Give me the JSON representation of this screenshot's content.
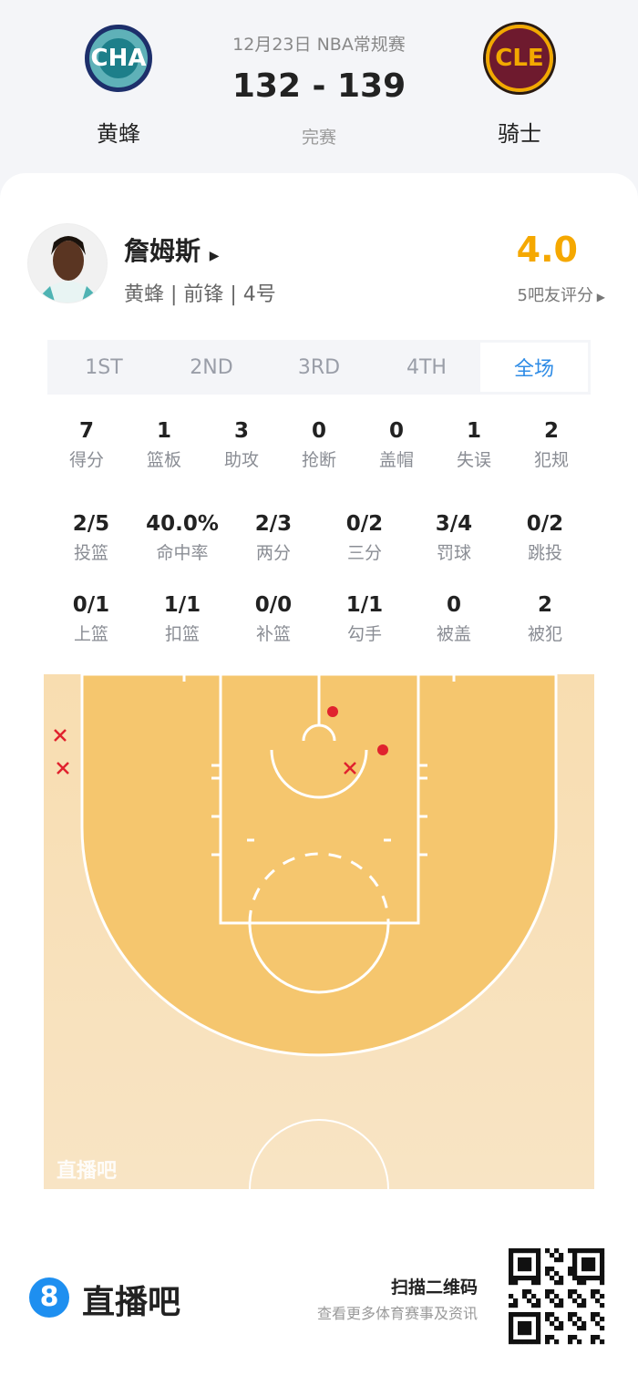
{
  "game": {
    "date_type": "12月23日 NBA常规赛",
    "score": "132 - 139",
    "status": "完赛"
  },
  "home": {
    "abbr": "CHA",
    "name": "黄蜂",
    "color": "#1d7f8a"
  },
  "away": {
    "abbr": "CLE",
    "name": "骑士",
    "color": "#6e1a2e"
  },
  "player": {
    "name": "詹姆斯",
    "info": "黄蜂 | 前锋 | 4号",
    "rating": "4.0",
    "rating_label": "5吧友评分",
    "rating_color": "#f5a800"
  },
  "tabs": [
    {
      "label": "1ST"
    },
    {
      "label": "2ND"
    },
    {
      "label": "3RD"
    },
    {
      "label": "4TH"
    },
    {
      "label": "全场",
      "active": true
    }
  ],
  "stats_row1": [
    {
      "v": "7",
      "l": "得分"
    },
    {
      "v": "1",
      "l": "篮板"
    },
    {
      "v": "3",
      "l": "助攻"
    },
    {
      "v": "0",
      "l": "抢断"
    },
    {
      "v": "0",
      "l": "盖帽"
    },
    {
      "v": "1",
      "l": "失误"
    },
    {
      "v": "2",
      "l": "犯规"
    }
  ],
  "stats_row2": [
    {
      "v": "2/5",
      "l": "投篮"
    },
    {
      "v": "40.0%",
      "l": "命中率"
    },
    {
      "v": "2/3",
      "l": "两分"
    },
    {
      "v": "0/2",
      "l": "三分"
    },
    {
      "v": "3/4",
      "l": "罚球"
    },
    {
      "v": "0/2",
      "l": "跳投"
    }
  ],
  "stats_row3": [
    {
      "v": "0/1",
      "l": "上篮"
    },
    {
      "v": "1/1",
      "l": "扣篮"
    },
    {
      "v": "0/0",
      "l": "补篮"
    },
    {
      "v": "1/1",
      "l": "勾手"
    },
    {
      "v": "0",
      "l": "被盖"
    },
    {
      "v": "2",
      "l": "被犯"
    }
  ],
  "shot_chart": {
    "made_color": "#e0222e",
    "shots": [
      "made",
      "made",
      "missed",
      "missed",
      "missed"
    ],
    "watermark": "直播吧"
  },
  "footer": {
    "brand": "直播吧",
    "scan": "扫描二维码",
    "sub": "查看更多体育赛事及资讯"
  }
}
